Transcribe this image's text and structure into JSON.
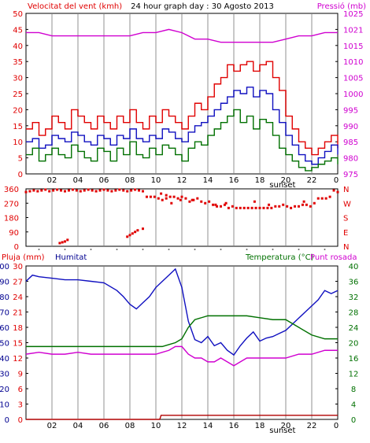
{
  "title": "24 hour graph day : 30 Agosto 2013",
  "colors": {
    "red": "#e00000",
    "blue": "#1010c0",
    "green": "#007000",
    "magenta": "#d000d0",
    "darkred": "#b00000",
    "grid": "#c8c8c8",
    "frame": "#000000",
    "label_red": "#e00000",
    "label_blue": "#000090",
    "label_green": "#007000",
    "label_magenta": "#d000d0"
  },
  "x_ticks": [
    "02",
    "04",
    "06",
    "08",
    "10",
    "12",
    "14",
    "16",
    "18",
    "20",
    "22",
    "0"
  ],
  "sunset_label": "sunset",
  "chart_data": [
    {
      "type": "line",
      "name": "wind-pressure",
      "labels": {
        "left": "Velocitat del vent (kmh)",
        "right": "Pressió (mb)"
      },
      "xlim": [
        0,
        24
      ],
      "left_axis": {
        "ticks": [
          "0",
          "5",
          "10",
          "15",
          "20",
          "25",
          "30",
          "35",
          "40",
          "45",
          "50"
        ],
        "ylim": [
          0,
          50
        ]
      },
      "right_axis": {
        "ticks": [
          "975",
          "980",
          "985",
          "990",
          "995",
          "1000",
          "1005",
          "1010",
          "1015",
          "1021",
          "1025"
        ],
        "ylim": [
          975,
          1025
        ]
      },
      "series": [
        {
          "axis": "left",
          "color": "red",
          "x": [
            0,
            0.5,
            1,
            1.5,
            2,
            2.5,
            3,
            3.5,
            4,
            4.5,
            5,
            5.5,
            6,
            6.5,
            7,
            7.5,
            8,
            8.5,
            9,
            9.5,
            10,
            10.5,
            11,
            11.5,
            12,
            12.5,
            13,
            13.5,
            14,
            14.5,
            15,
            15.5,
            16,
            16.5,
            17,
            17.5,
            18,
            18.5,
            19,
            19.5,
            20,
            20.5,
            21,
            21.5,
            22,
            22.5,
            23,
            23.5,
            24
          ],
          "y": [
            14,
            16,
            12,
            14,
            18,
            16,
            14,
            20,
            18,
            16,
            14,
            18,
            16,
            14,
            18,
            16,
            20,
            16,
            14,
            18,
            16,
            20,
            18,
            16,
            14,
            18,
            22,
            20,
            24,
            28,
            30,
            34,
            32,
            34,
            35,
            32,
            34,
            35,
            30,
            26,
            18,
            14,
            10,
            8,
            6,
            8,
            10,
            12,
            8
          ]
        },
        {
          "axis": "left",
          "color": "blue",
          "x": [
            0,
            0.5,
            1,
            1.5,
            2,
            2.5,
            3,
            3.5,
            4,
            4.5,
            5,
            5.5,
            6,
            6.5,
            7,
            7.5,
            8,
            8.5,
            9,
            9.5,
            10,
            10.5,
            11,
            11.5,
            12,
            12.5,
            13,
            13.5,
            14,
            14.5,
            15,
            15.5,
            16,
            16.5,
            17,
            17.5,
            18,
            18.5,
            19,
            19.5,
            20,
            20.5,
            21,
            21.5,
            22,
            22.5,
            23,
            23.5,
            24
          ],
          "y": [
            10,
            11,
            8,
            9,
            12,
            11,
            10,
            13,
            12,
            10,
            9,
            12,
            11,
            9,
            12,
            11,
            14,
            11,
            10,
            12,
            11,
            14,
            13,
            11,
            10,
            13,
            15,
            16,
            18,
            20,
            22,
            24,
            26,
            25,
            27,
            24,
            26,
            25,
            20,
            16,
            12,
            9,
            6,
            4,
            3,
            5,
            7,
            9,
            6
          ]
        },
        {
          "axis": "left",
          "color": "green",
          "x": [
            0,
            0.5,
            1,
            1.5,
            2,
            2.5,
            3,
            3.5,
            4,
            4.5,
            5,
            5.5,
            6,
            6.5,
            7,
            7.5,
            8,
            8.5,
            9,
            9.5,
            10,
            10.5,
            11,
            11.5,
            12,
            12.5,
            13,
            13.5,
            14,
            14.5,
            15,
            15.5,
            16,
            16.5,
            17,
            17.5,
            18,
            18.5,
            19,
            19.5,
            20,
            20.5,
            21,
            21.5,
            22,
            22.5,
            23,
            23.5,
            24
          ],
          "y": [
            6,
            8,
            4,
            6,
            8,
            6,
            5,
            9,
            7,
            5,
            4,
            8,
            7,
            4,
            8,
            6,
            10,
            6,
            5,
            8,
            6,
            9,
            8,
            6,
            4,
            8,
            10,
            9,
            12,
            14,
            16,
            18,
            20,
            16,
            18,
            14,
            17,
            16,
            12,
            8,
            6,
            4,
            2,
            1,
            2,
            3,
            4,
            5,
            3
          ]
        },
        {
          "axis": "right",
          "color": "magenta",
          "x": [
            0,
            1,
            2,
            3,
            4,
            5,
            6,
            7,
            8,
            9,
            10,
            11,
            12,
            13,
            14,
            15,
            16,
            17,
            18,
            19,
            20,
            21,
            22,
            23,
            24
          ],
          "y": [
            1019,
            1019,
            1018,
            1018,
            1018,
            1018,
            1018,
            1018,
            1018,
            1019,
            1019,
            1020,
            1019,
            1017,
            1017,
            1016,
            1016,
            1016,
            1016,
            1016,
            1017,
            1018,
            1018,
            1019,
            1019
          ]
        }
      ]
    },
    {
      "type": "scatter",
      "name": "wind-direction",
      "xlim": [
        0,
        24
      ],
      "ylim": [
        0,
        360
      ],
      "left_ticks": [
        "0",
        "90",
        "180",
        "270",
        "360"
      ],
      "right_ticks": [
        "N",
        "E",
        "S",
        "W",
        "N"
      ],
      "color": "red",
      "x": [
        0,
        0.3,
        0.6,
        0.9,
        1.2,
        1.5,
        1.8,
        2.1,
        2.4,
        2.7,
        3.0,
        3.3,
        3.6,
        3.9,
        4.2,
        4.5,
        4.8,
        5.1,
        5.4,
        5.7,
        6.0,
        6.3,
        6.6,
        6.9,
        7.2,
        7.5,
        7.8,
        8.1,
        8.4,
        8.7,
        9.0,
        9.3,
        9.6,
        9.9,
        10.2,
        10.5,
        10.8,
        11.1,
        11.4,
        11.7,
        12.0,
        12.3,
        12.6,
        12.9,
        13.2,
        13.5,
        13.8,
        14.1,
        14.4,
        14.7,
        15.0,
        15.3,
        15.6,
        15.9,
        16.2,
        16.5,
        16.8,
        17.1,
        17.4,
        17.7,
        18.0,
        18.3,
        18.6,
        18.9,
        19.2,
        19.5,
        19.8,
        20.1,
        20.4,
        20.7,
        21.0,
        21.3,
        21.6,
        21.9,
        22.2,
        22.5,
        22.8,
        23.1,
        23.4,
        23.7,
        24.0,
        2.6,
        2.8,
        3.0,
        3.2,
        7.8,
        8.0,
        8.2,
        8.4,
        8.6,
        9.0,
        10.4,
        10.8,
        11.2,
        11.9,
        12.8,
        14.6,
        15.4,
        17.6,
        18.7,
        21.4
      ],
      "y": [
        340,
        345,
        350,
        345,
        350,
        355,
        345,
        350,
        355,
        350,
        345,
        350,
        355,
        350,
        345,
        350,
        355,
        350,
        345,
        350,
        355,
        350,
        345,
        350,
        355,
        350,
        345,
        350,
        355,
        350,
        345,
        310,
        310,
        310,
        300,
        290,
        300,
        310,
        310,
        300,
        310,
        300,
        280,
        290,
        300,
        280,
        270,
        280,
        260,
        250,
        250,
        260,
        240,
        250,
        240,
        240,
        240,
        240,
        240,
        240,
        240,
        240,
        240,
        240,
        250,
        250,
        260,
        250,
        240,
        250,
        250,
        260,
        260,
        250,
        270,
        300,
        300,
        300,
        310,
        350,
        340,
        20,
        25,
        30,
        40,
        60,
        70,
        80,
        90,
        100,
        110,
        330,
        320,
        270,
        290,
        290,
        260,
        270,
        280,
        260,
        280
      ]
    },
    {
      "type": "line",
      "name": "humidity-temperature",
      "labels": {
        "left_red": "Pluja (mm)",
        "left_blue": "Humitat",
        "right_green": "Temperatura (°C)",
        "right_magenta": "Punt rosada"
      },
      "xlim": [
        0,
        24
      ],
      "rain_axis": {
        "ticks": [
          "0",
          "3",
          "6",
          "9",
          "12",
          "15",
          "18",
          "21",
          "24",
          "27",
          "30"
        ],
        "ylim": [
          0,
          30
        ]
      },
      "humidity_axis": {
        "ticks": [
          "0",
          "10",
          "20",
          "30",
          "40",
          "50",
          "60",
          "70",
          "80",
          "90",
          "100"
        ],
        "ylim": [
          0,
          100
        ]
      },
      "temp_axis": {
        "ticks": [
          "0",
          "4",
          "8",
          "12",
          "16",
          "20",
          "24",
          "28",
          "32",
          "36",
          "40"
        ],
        "ylim": [
          0,
          40
        ]
      },
      "series": [
        {
          "axis": "humidity",
          "color": "blue",
          "x": [
            0,
            0.5,
            1,
            2,
            3,
            4,
            5,
            6,
            7,
            7.5,
            8,
            8.5,
            9,
            9.5,
            10,
            10.5,
            11,
            11.5,
            12,
            12.5,
            13,
            13.5,
            14,
            14.5,
            15,
            15.5,
            16,
            16.5,
            17,
            17.5,
            18,
            18.5,
            19,
            19.5,
            20,
            20.5,
            21,
            21.5,
            22,
            22.5,
            23,
            23.5,
            24
          ],
          "y": [
            90,
            94,
            93,
            92,
            91,
            91,
            90,
            89,
            84,
            80,
            75,
            72,
            76,
            80,
            86,
            90,
            94,
            98,
            86,
            64,
            52,
            50,
            54,
            48,
            50,
            45,
            42,
            48,
            53,
            57,
            51,
            53,
            54,
            56,
            58,
            62,
            66,
            70,
            74,
            78,
            84,
            82,
            84
          ]
        },
        {
          "axis": "temp",
          "color": "green",
          "x": [
            0,
            1,
            2,
            3,
            4,
            5,
            6,
            7,
            8,
            9,
            10,
            10.5,
            11,
            11.5,
            12,
            12.5,
            13,
            14,
            15,
            16,
            17,
            18,
            19,
            20,
            21,
            22,
            23,
            24
          ],
          "y": [
            19,
            19,
            19,
            19,
            19,
            19,
            19,
            19,
            19,
            19,
            19,
            19,
            19.5,
            20,
            21,
            24,
            26,
            27,
            27,
            27,
            27,
            26.5,
            26,
            26,
            24,
            22,
            21,
            21
          ]
        },
        {
          "axis": "temp",
          "color": "magenta",
          "x": [
            0,
            1,
            2,
            3,
            4,
            5,
            6,
            7,
            8,
            9,
            10,
            10.5,
            11,
            11.5,
            12,
            12.5,
            13,
            13.5,
            14,
            14.5,
            15,
            15.5,
            16,
            16.5,
            17,
            18,
            19,
            20,
            21,
            22,
            23,
            24
          ],
          "y": [
            17,
            17.5,
            17,
            17,
            17.5,
            17,
            17,
            17,
            17,
            17,
            17,
            17.5,
            18,
            19,
            19,
            17,
            16,
            16,
            15,
            15,
            16,
            15,
            14,
            15,
            16,
            16,
            16,
            16,
            17,
            17,
            18,
            18
          ]
        },
        {
          "axis": "rain",
          "color": "darkred",
          "x": [
            0,
            10.3,
            10.4,
            24
          ],
          "y": [
            0,
            0,
            0.8,
            0.8
          ]
        }
      ]
    }
  ]
}
